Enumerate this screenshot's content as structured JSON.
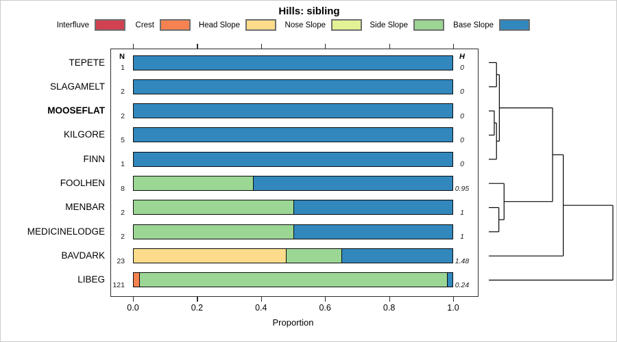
{
  "title": "Hills: sibling",
  "chart_data": {
    "type": "bar",
    "stacked": true,
    "orientation": "horizontal",
    "title": "Hills: sibling",
    "xlabel": "Proportion",
    "xlim": [
      0,
      1
    ],
    "x_ticks": [
      0,
      0.2,
      0.4,
      0.6,
      0.8,
      1
    ],
    "legend_position": "top",
    "grid": false,
    "series_names": [
      "Interfluve",
      "Crest",
      "Head Slope",
      "Nose Slope",
      "Side Slope",
      "Base Slope"
    ],
    "series_colors": [
      "#d04152",
      "#f58250",
      "#fcdc8b",
      "#e3f295",
      "#9cd695",
      "#3288bd"
    ],
    "column_headers": {
      "n": "N",
      "h": "H"
    },
    "rows": [
      {
        "label": "TEPETE",
        "bold": false,
        "n": 1,
        "h": "0",
        "segments": [
          {
            "series": "Base Slope",
            "value": 1.0
          }
        ]
      },
      {
        "label": "SLAGAMELT",
        "bold": false,
        "n": 2,
        "h": "0",
        "segments": [
          {
            "series": "Base Slope",
            "value": 1.0
          }
        ]
      },
      {
        "label": "MOOSEFLAT",
        "bold": true,
        "n": 2,
        "h": "0",
        "segments": [
          {
            "series": "Base Slope",
            "value": 1.0
          }
        ]
      },
      {
        "label": "KILGORE",
        "bold": false,
        "n": 5,
        "h": "0",
        "segments": [
          {
            "series": "Base Slope",
            "value": 1.0
          }
        ]
      },
      {
        "label": "FINN",
        "bold": false,
        "n": 1,
        "h": "0",
        "segments": [
          {
            "series": "Base Slope",
            "value": 1.0
          }
        ]
      },
      {
        "label": "FOOLHEN",
        "bold": false,
        "n": 8,
        "h": "0.95",
        "segments": [
          {
            "series": "Side Slope",
            "value": 0.375
          },
          {
            "series": "Base Slope",
            "value": 0.625
          }
        ]
      },
      {
        "label": "MENBAR",
        "bold": false,
        "n": 2,
        "h": "1",
        "segments": [
          {
            "series": "Side Slope",
            "value": 0.5
          },
          {
            "series": "Base Slope",
            "value": 0.5
          }
        ]
      },
      {
        "label": "MEDICINELODGE",
        "bold": false,
        "n": 2,
        "h": "1",
        "segments": [
          {
            "series": "Side Slope",
            "value": 0.5
          },
          {
            "series": "Base Slope",
            "value": 0.5
          }
        ]
      },
      {
        "label": "BAVDARK",
        "bold": false,
        "n": 23,
        "h": "1.48",
        "segments": [
          {
            "series": "Head Slope",
            "value": 0.478
          },
          {
            "series": "Side Slope",
            "value": 0.174
          },
          {
            "series": "Base Slope",
            "value": 0.348
          }
        ]
      },
      {
        "label": "LIBEG",
        "bold": false,
        "n": 121,
        "h": "0.24",
        "segments": [
          {
            "series": "Crest",
            "value": 0.017
          },
          {
            "series": "Side Slope",
            "value": 0.966
          },
          {
            "series": "Base Slope",
            "value": 0.017
          }
        ]
      }
    ],
    "dendrogram": {
      "leaf_order": [
        "TEPETE",
        "SLAGAMELT",
        "MOOSEFLAT",
        "KILGORE",
        "FINN",
        "FOOLHEN",
        "MENBAR",
        "MEDICINELODGE",
        "BAVDARK",
        "LIBEG"
      ],
      "merges": [
        {
          "id": "m1",
          "a": "TEPETE",
          "b": "SLAGAMELT",
          "height": 0.062
        },
        {
          "id": "m2",
          "a": "MOOSEFLAT",
          "b": "KILGORE",
          "height": 0.044
        },
        {
          "id": "m3",
          "a": "m2",
          "b": "FINN",
          "height": 0.062
        },
        {
          "id": "m4",
          "a": "m1",
          "b": "m3",
          "height": 0.085
        },
        {
          "id": "m5",
          "a": "MENBAR",
          "b": "MEDICINELODGE",
          "height": 0.081
        },
        {
          "id": "m6",
          "a": "FOOLHEN",
          "b": "m5",
          "height": 0.123
        },
        {
          "id": "m7",
          "a": "m4",
          "b": "m6",
          "height": 0.514
        },
        {
          "id": "m8",
          "a": "m7",
          "b": "BAVDARK",
          "height": 0.6
        },
        {
          "id": "m9",
          "a": "m8",
          "b": "LIBEG",
          "height": 1.0
        }
      ]
    }
  }
}
